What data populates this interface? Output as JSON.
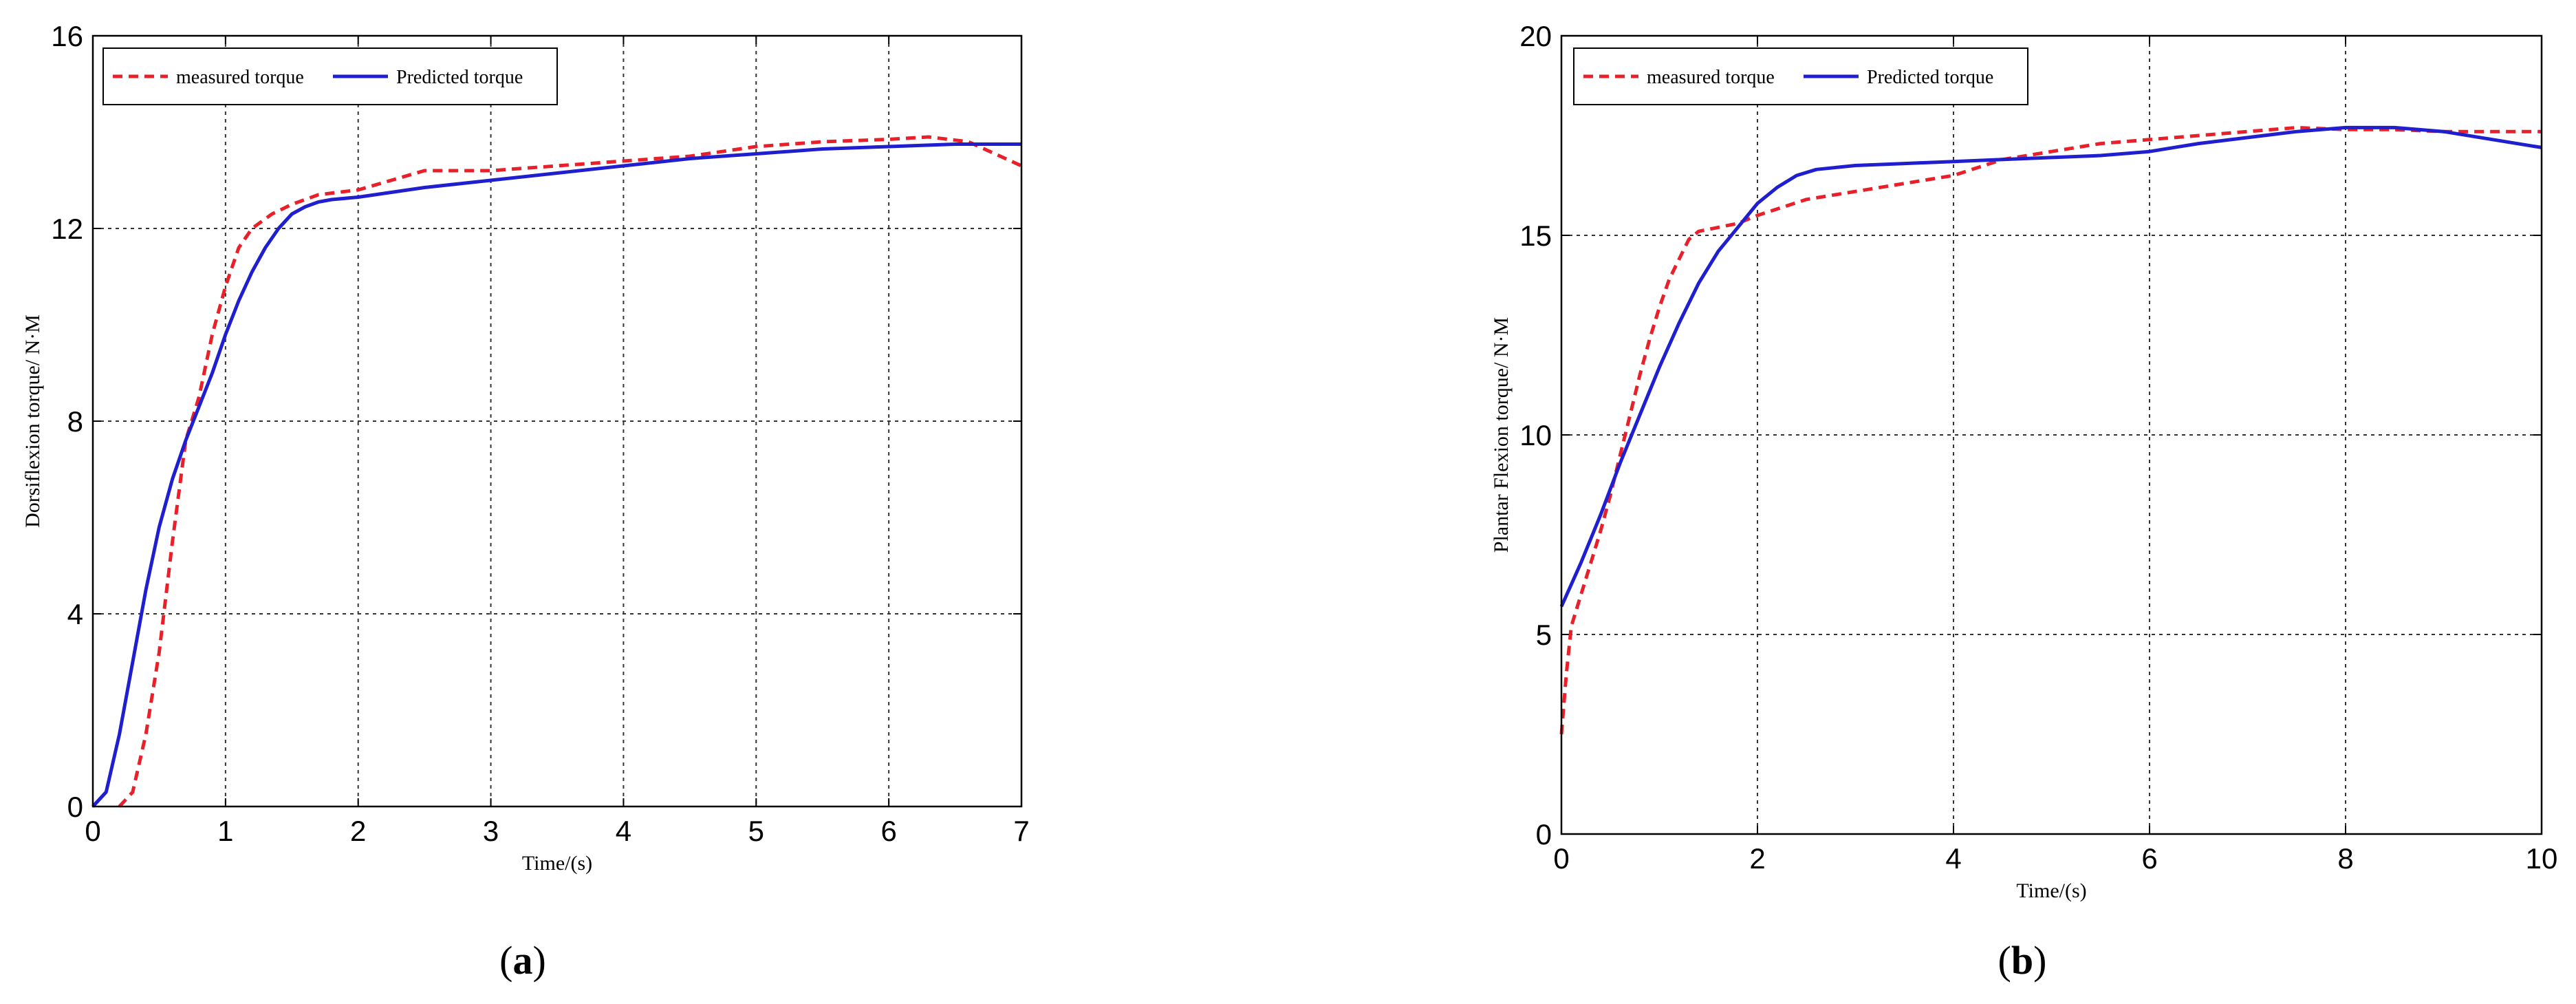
{
  "chart_data": [
    {
      "type": "line",
      "panel_label": "a",
      "xlabel": "Time/(s)",
      "ylabel": "Dorsiflexion torque/ N·M",
      "xlim": [
        0,
        7
      ],
      "ylim": [
        0,
        16
      ],
      "xticks": [
        "0",
        "1",
        "2",
        "3",
        "4",
        "5",
        "6",
        "7"
      ],
      "yticks": [
        "0",
        "4",
        "8",
        "12",
        "16"
      ],
      "grid": true,
      "legend_position": "top-left",
      "series": [
        {
          "name": "measured torque",
          "color": "#e8202a",
          "style": "dashed",
          "x": [
            0.2,
            0.3,
            0.4,
            0.5,
            0.6,
            0.7,
            0.8,
            0.9,
            1.0,
            1.1,
            1.2,
            1.35,
            1.5,
            1.7,
            2.0,
            2.5,
            3.0,
            3.5,
            4.0,
            4.5,
            5.0,
            5.5,
            6.0,
            6.3,
            6.6,
            7.0
          ],
          "y": [
            0.0,
            0.3,
            1.5,
            3.2,
            5.5,
            7.6,
            8.5,
            9.8,
            10.8,
            11.6,
            12.0,
            12.3,
            12.5,
            12.7,
            12.8,
            13.2,
            13.2,
            13.3,
            13.4,
            13.5,
            13.7,
            13.8,
            13.85,
            13.9,
            13.8,
            13.3
          ]
        },
        {
          "name": "Predicted torque",
          "color": "#1f1fcf",
          "style": "solid",
          "x": [
            0.0,
            0.1,
            0.2,
            0.3,
            0.4,
            0.5,
            0.6,
            0.7,
            0.8,
            0.9,
            1.0,
            1.1,
            1.2,
            1.3,
            1.4,
            1.5,
            1.6,
            1.7,
            1.8,
            2.0,
            2.5,
            3.0,
            3.5,
            4.0,
            4.5,
            5.0,
            5.5,
            6.0,
            6.5,
            7.0
          ],
          "y": [
            0.0,
            0.3,
            1.5,
            3.0,
            4.5,
            5.8,
            6.8,
            7.6,
            8.3,
            9.0,
            9.8,
            10.5,
            11.1,
            11.6,
            12.0,
            12.3,
            12.45,
            12.55,
            12.6,
            12.65,
            12.85,
            13.0,
            13.15,
            13.3,
            13.45,
            13.55,
            13.65,
            13.7,
            13.75,
            13.75
          ]
        }
      ]
    },
    {
      "type": "line",
      "panel_label": "b",
      "xlabel": "Time/(s)",
      "ylabel": "Plantar Flexion torque/ N·M",
      "xlim": [
        0,
        10
      ],
      "ylim": [
        0,
        20
      ],
      "xticks": [
        "0",
        "2",
        "4",
        "6",
        "8",
        "10"
      ],
      "yticks": [
        "0",
        "5",
        "10",
        "15",
        "20"
      ],
      "grid": true,
      "legend_position": "top-left",
      "series": [
        {
          "name": "measured torque",
          "color": "#e8202a",
          "style": "dashed",
          "x": [
            0.0,
            0.05,
            0.1,
            0.2,
            0.3,
            0.4,
            0.5,
            0.6,
            0.7,
            0.8,
            0.9,
            1.0,
            1.1,
            1.2,
            1.3,
            1.4,
            1.6,
            1.8,
            2.0,
            2.5,
            3.0,
            3.5,
            4.0,
            4.5,
            5.0,
            5.5,
            6.0,
            6.5,
            7.0,
            7.5,
            8.0,
            8.5,
            9.0,
            9.5,
            10.0
          ],
          "y": [
            2.5,
            4.0,
            5.2,
            6.0,
            6.8,
            7.6,
            8.5,
            9.5,
            10.5,
            11.5,
            12.4,
            13.2,
            13.9,
            14.4,
            14.9,
            15.1,
            15.2,
            15.3,
            15.5,
            15.9,
            16.1,
            16.3,
            16.5,
            16.9,
            17.1,
            17.3,
            17.4,
            17.5,
            17.6,
            17.7,
            17.65,
            17.65,
            17.6,
            17.6,
            17.6
          ]
        },
        {
          "name": "Predicted torque",
          "color": "#1f1fcf",
          "style": "solid",
          "x": [
            0.0,
            0.2,
            0.4,
            0.6,
            0.8,
            1.0,
            1.2,
            1.4,
            1.6,
            1.8,
            2.0,
            2.2,
            2.4,
            2.6,
            2.8,
            3.0,
            3.5,
            4.0,
            4.5,
            5.0,
            5.5,
            6.0,
            6.5,
            7.0,
            7.5,
            8.0,
            8.5,
            9.0,
            9.5,
            10.0
          ],
          "y": [
            5.7,
            6.8,
            8.0,
            9.3,
            10.5,
            11.7,
            12.8,
            13.8,
            14.6,
            15.2,
            15.8,
            16.2,
            16.5,
            16.65,
            16.7,
            16.75,
            16.8,
            16.85,
            16.9,
            16.95,
            17.0,
            17.1,
            17.3,
            17.45,
            17.6,
            17.7,
            17.7,
            17.6,
            17.4,
            17.2
          ]
        }
      ]
    }
  ]
}
